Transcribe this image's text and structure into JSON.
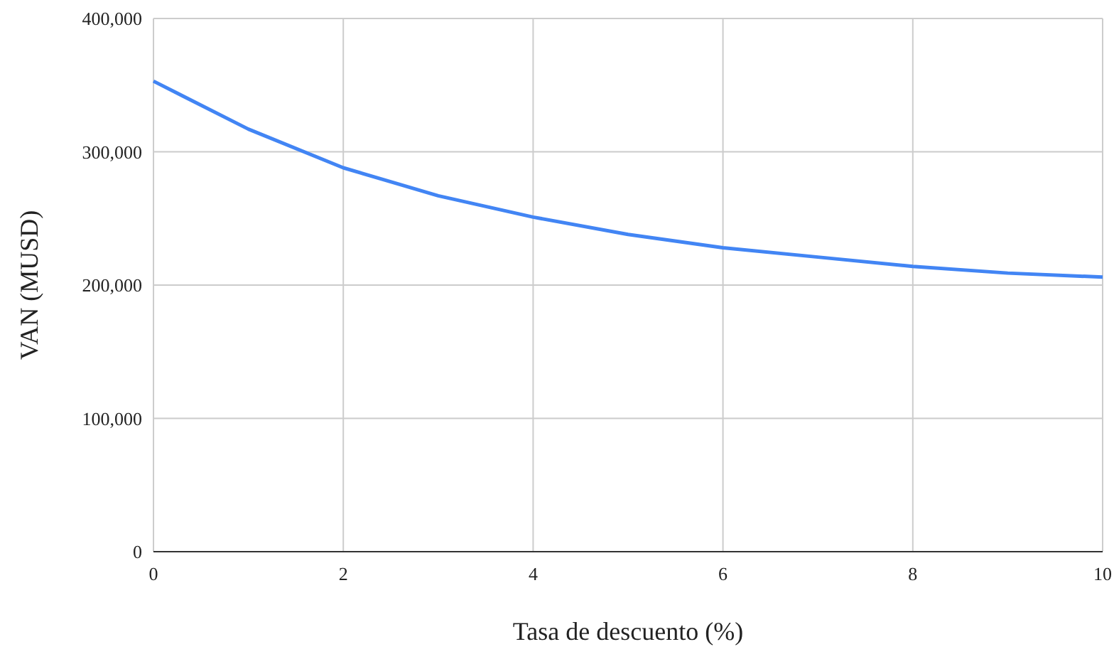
{
  "chart_data": {
    "type": "line",
    "xlabel": "Tasa de descuento (%)",
    "ylabel": "VAN (MUSD)",
    "x": [
      0,
      1,
      2,
      3,
      4,
      5,
      6,
      7,
      8,
      9,
      10
    ],
    "series": [
      {
        "color": "#4285f4",
        "values": [
          353000,
          317000,
          288000,
          267000,
          251000,
          238000,
          228000,
          221000,
          214000,
          209000,
          206000
        ]
      }
    ],
    "xlim": [
      0,
      10
    ],
    "xticks": [
      0,
      2,
      4,
      6,
      8,
      10
    ],
    "ylim": [
      0,
      400000
    ],
    "yticks": [
      {
        "value": 0,
        "label": "0"
      },
      {
        "value": 100000,
        "label": "100,000"
      },
      {
        "value": 200000,
        "label": "200,000"
      },
      {
        "value": 300000,
        "label": "300,000"
      },
      {
        "value": 400000,
        "label": "400,000"
      }
    ],
    "grid": true,
    "legend": false,
    "marker": "none",
    "line_style": "solid"
  }
}
